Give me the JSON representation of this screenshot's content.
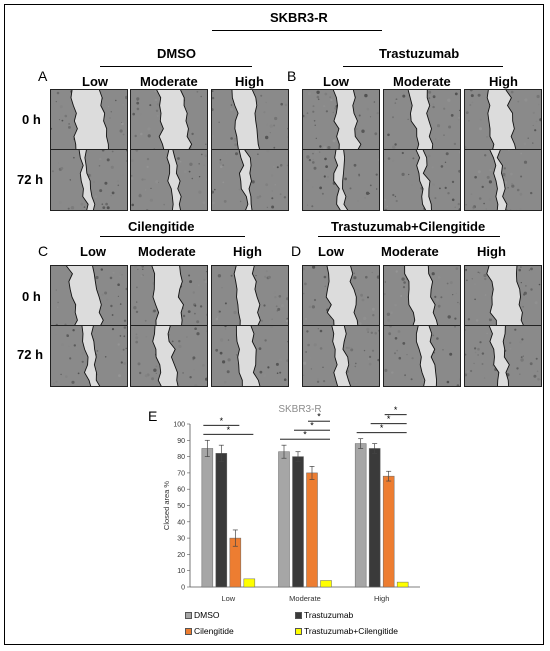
{
  "figure": {
    "cell_line": "SKBR3-R",
    "density_labels": [
      "Low",
      "Moderate",
      "High"
    ],
    "time_labels": [
      "0 h",
      "72 h"
    ],
    "panels": [
      {
        "letter": "A",
        "treatment": "DMSO"
      },
      {
        "letter": "B",
        "treatment": "Trastuzumab"
      },
      {
        "letter": "C",
        "treatment": "Cilengitide"
      },
      {
        "letter": "D",
        "treatment": "Trastuzumab+Cilengitide"
      }
    ],
    "chart_letter": "E",
    "significance_mark": "*"
  },
  "chart_data": {
    "type": "bar",
    "title": "SKBR3-R",
    "ylabel": "Closed area %",
    "xlabel": "",
    "ylim": [
      0,
      100
    ],
    "yticks": [
      0,
      10,
      20,
      30,
      40,
      50,
      60,
      70,
      80,
      90,
      100
    ],
    "categories": [
      "Low",
      "Moderate",
      "High"
    ],
    "series": [
      {
        "name": "DMSO",
        "color": "#a6a6a6",
        "values": [
          85,
          83,
          88
        ],
        "errors": [
          5,
          4,
          3
        ]
      },
      {
        "name": "Trastuzumab",
        "color": "#3a3a3a",
        "values": [
          82,
          80,
          85
        ],
        "errors": [
          5,
          3,
          3
        ]
      },
      {
        "name": "Cilengitide",
        "color": "#ed7d31",
        "values": [
          30,
          70,
          68
        ],
        "errors": [
          5,
          4,
          3
        ]
      },
      {
        "name": "Trastuzumab+Cilengitide",
        "color": "#ffff00",
        "values": [
          5,
          4,
          3
        ],
        "errors": [
          0,
          0,
          0
        ]
      }
    ],
    "significance": [
      {
        "category": 0,
        "from": 0,
        "to": 3
      },
      {
        "category": 0,
        "from": 0,
        "to": 2
      },
      {
        "category": 1,
        "from": 0,
        "to": 3
      },
      {
        "category": 1,
        "from": 1,
        "to": 3
      },
      {
        "category": 1,
        "from": 2,
        "to": 3
      },
      {
        "category": 2,
        "from": 0,
        "to": 3
      },
      {
        "category": 2,
        "from": 1,
        "to": 3
      },
      {
        "category": 2,
        "from": 2,
        "to": 3
      }
    ],
    "legend_position": "bottom"
  }
}
